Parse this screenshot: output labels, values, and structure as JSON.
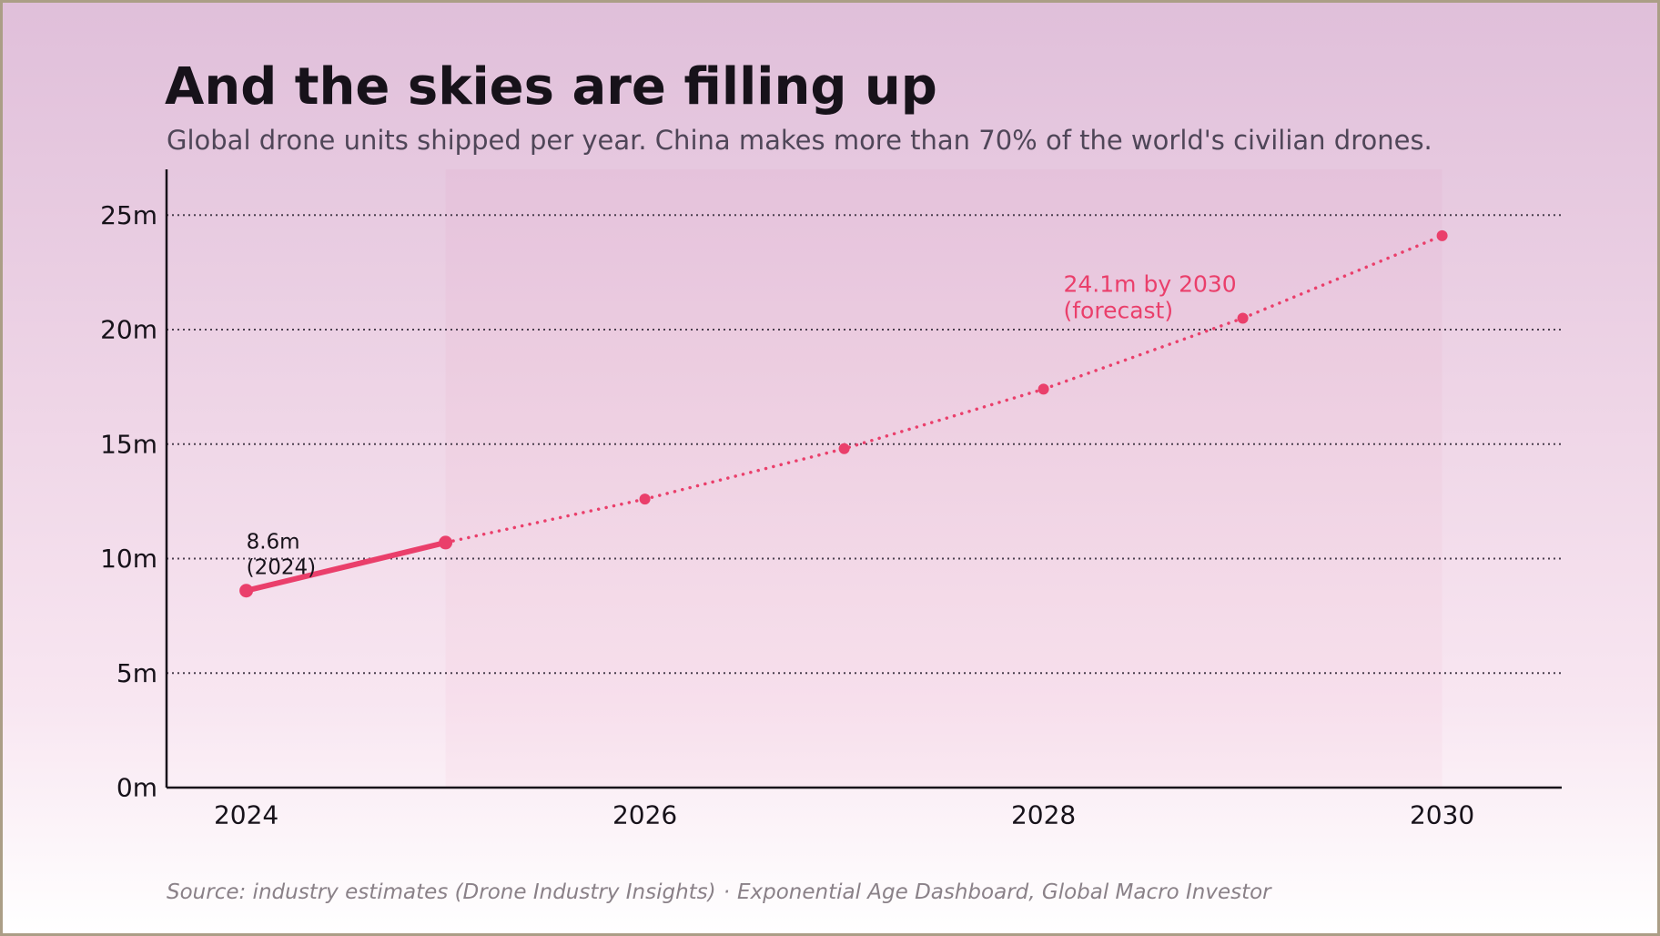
{
  "page": {
    "title": "And the skies are filling up",
    "subtitle": "Global drone units shipped per year. China makes more than 70% of the world's civilian drones.",
    "source_left": "Source: industry estimates (Drone Industry Insights)",
    "source_separator": "·",
    "source_right": "Exponential Age Dashboard, Global Macro Investor"
  },
  "chart_data": {
    "type": "line",
    "title": "And the skies are filling up",
    "subtitle": "Global drone units shipped per year. China makes more than 70% of the world's civilian drones.",
    "xlabel": "",
    "ylabel": "",
    "xlim": [
      2023.6,
      2030.6
    ],
    "ylim": [
      0,
      27
    ],
    "x_ticks": [
      2024,
      2026,
      2028,
      2030
    ],
    "y_ticks": [
      0,
      5,
      10,
      15,
      20,
      25
    ],
    "y_tick_labels": [
      "0m",
      "5m",
      "10m",
      "15m",
      "20m",
      "25m"
    ],
    "grid": "horizontal dotted",
    "forecast_region": [
      2025,
      2030
    ],
    "series": [
      {
        "style": "solid",
        "color": "#ea3f6b",
        "x": [
          2024,
          2025
        ],
        "y": [
          8.6,
          10.7
        ]
      },
      {
        "style": "dotted",
        "color": "#ea3f6b",
        "x": [
          2025,
          2026,
          2027,
          2028,
          2029,
          2030
        ],
        "y": [
          10.7,
          12.6,
          14.8,
          17.4,
          20.5,
          24.1
        ]
      }
    ],
    "annotations": [
      {
        "text": "8.6m\n(2024)",
        "x": 2024,
        "y": 8.6,
        "color": "#17121a"
      },
      {
        "text": "24.1m by 2030\n(forecast)",
        "x": 2028.1,
        "y": 20.9,
        "color": "#ea3f6b"
      }
    ],
    "colors": {
      "line": "#ea3f6b",
      "axis": "#17121a",
      "grid": "#4a3f4e",
      "forecast_band": "#ea3f6b"
    }
  }
}
